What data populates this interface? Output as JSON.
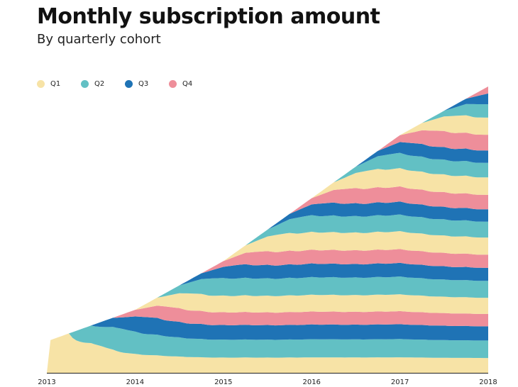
{
  "title": "Monthly subscription amount",
  "subtitle": "By quarterly cohort",
  "legend": [
    {
      "label": "Q1",
      "color": "#f7e3a6"
    },
    {
      "label": "Q2",
      "color": "#62c0c4"
    },
    {
      "label": "Q3",
      "color": "#1f73b5"
    },
    {
      "label": "Q4",
      "color": "#ee8e9a"
    }
  ],
  "chart_data": {
    "type": "area",
    "stacked": true,
    "title": "Monthly subscription amount",
    "subtitle": "By quarterly cohort",
    "x_ticks": [
      "2013",
      "2014",
      "2015",
      "2016",
      "2017",
      "2018"
    ],
    "x_range": [
      2013,
      2018
    ],
    "grid": false,
    "legend_position": "top-left",
    "cohort_cycle": [
      "Q1",
      "Q2",
      "Q3",
      "Q4"
    ],
    "cohort_start": 2013.0,
    "cohort_count": 21,
    "total_relative": {
      "x": [
        2013.0,
        2014.0,
        2015.0,
        2016.0,
        2017.0,
        2018.0
      ],
      "y": [
        0.11,
        0.22,
        0.39,
        0.61,
        0.83,
        1.0
      ]
    }
  }
}
